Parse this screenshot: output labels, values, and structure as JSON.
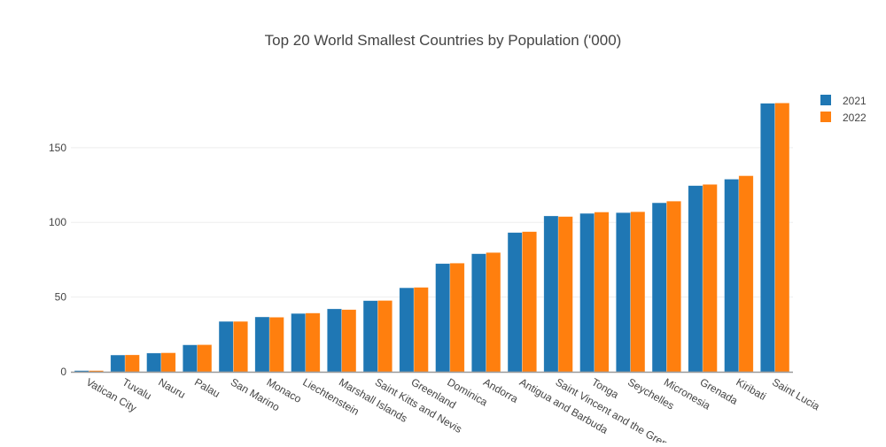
{
  "chart_data": {
    "type": "bar",
    "title": "Top 20 World Smallest Countries by Population ('000)",
    "categories": [
      "Vatican City",
      "Tuvalu",
      "Nauru",
      "Palau",
      "San Marino",
      "Monaco",
      "Liechtenstein",
      "Marshall Islands",
      "Saint Kitts and Nevis",
      "Greenland",
      "Dominica",
      "Andorra",
      "Antigua and Barbuda",
      "Saint Vincent and the Grenadines",
      "Tonga",
      "Seychelles",
      "Micronesia",
      "Grenada",
      "Kiribati",
      "Saint Lucia"
    ],
    "series": [
      {
        "name": "2021",
        "color": "#1f77b4",
        "values": [
          0.8,
          11.2,
          12.5,
          18.0,
          33.7,
          36.7,
          39.0,
          42.1,
          47.6,
          56.2,
          72.4,
          79.0,
          93.2,
          104.3,
          106.0,
          106.5,
          113.1,
          124.6,
          128.9,
          179.7
        ]
      },
      {
        "name": "2022",
        "color": "#ff7f0e",
        "values": [
          0.8,
          11.3,
          12.7,
          18.1,
          33.7,
          36.5,
          39.3,
          41.6,
          47.7,
          56.5,
          72.7,
          79.8,
          93.8,
          103.9,
          106.9,
          107.1,
          114.2,
          125.4,
          131.2,
          179.9
        ]
      }
    ],
    "yticks": [
      0,
      50,
      100,
      150
    ],
    "ylim": [
      0,
      189.6
    ],
    "grid": true,
    "legend": "top-right",
    "xlabel": "",
    "ylabel": ""
  }
}
